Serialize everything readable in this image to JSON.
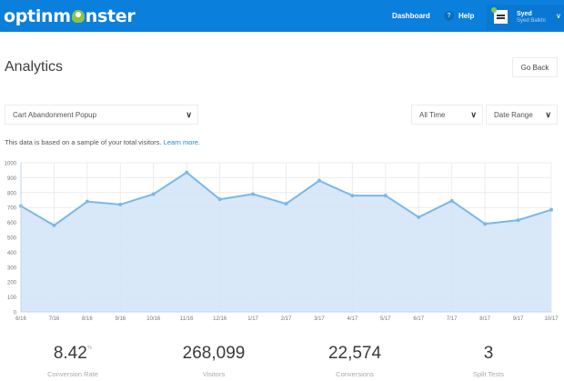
{
  "header": {
    "logo_text_left": "optinm",
    "logo_text_right": "nster",
    "nav": {
      "dashboard": "Dashboard",
      "help_badge": "?",
      "help": "Help"
    },
    "user": {
      "name": "Syed",
      "subtitle": "Syed Balkhi"
    },
    "colors": {
      "bar": "#0b7fdc",
      "online": "#8bc34a"
    }
  },
  "page": {
    "title": "Analytics",
    "go_back": "Go Back",
    "campaign_select": "Cart Abandonment Popup",
    "time_select": "All Time",
    "range_select": "Date Range",
    "note": "This data is based on a sample of your total visitors.",
    "note_link": "Learn more."
  },
  "chart_data": {
    "type": "area",
    "title": "",
    "xlabel": "",
    "ylabel": "",
    "categories": [
      "6/16",
      "7/16",
      "8/16",
      "9/16",
      "10/16",
      "11/16",
      "12/16",
      "1/17",
      "2/17",
      "3/17",
      "4/17",
      "5/17",
      "6/17",
      "7/17",
      "8/17",
      "9/17",
      "10/17"
    ],
    "values": [
      710,
      580,
      740,
      720,
      790,
      935,
      755,
      790,
      725,
      880,
      780,
      780,
      635,
      745,
      590,
      615,
      685
    ],
    "ylim": [
      0,
      1000
    ],
    "yticks": [
      0,
      100,
      200,
      300,
      400,
      500,
      600,
      700,
      800,
      900,
      1000
    ],
    "grid": true,
    "legend": "none",
    "colors": {
      "line": "#7ab8ea",
      "fill": "#d4e6f7"
    }
  },
  "stats": [
    {
      "value": "8.42",
      "unit": "%",
      "label": "Conversion Rate"
    },
    {
      "value": "268,099",
      "unit": "",
      "label": "Visitors"
    },
    {
      "value": "22,574",
      "unit": "",
      "label": "Conversions"
    },
    {
      "value": "3",
      "unit": "",
      "label": "Split Tests"
    }
  ]
}
